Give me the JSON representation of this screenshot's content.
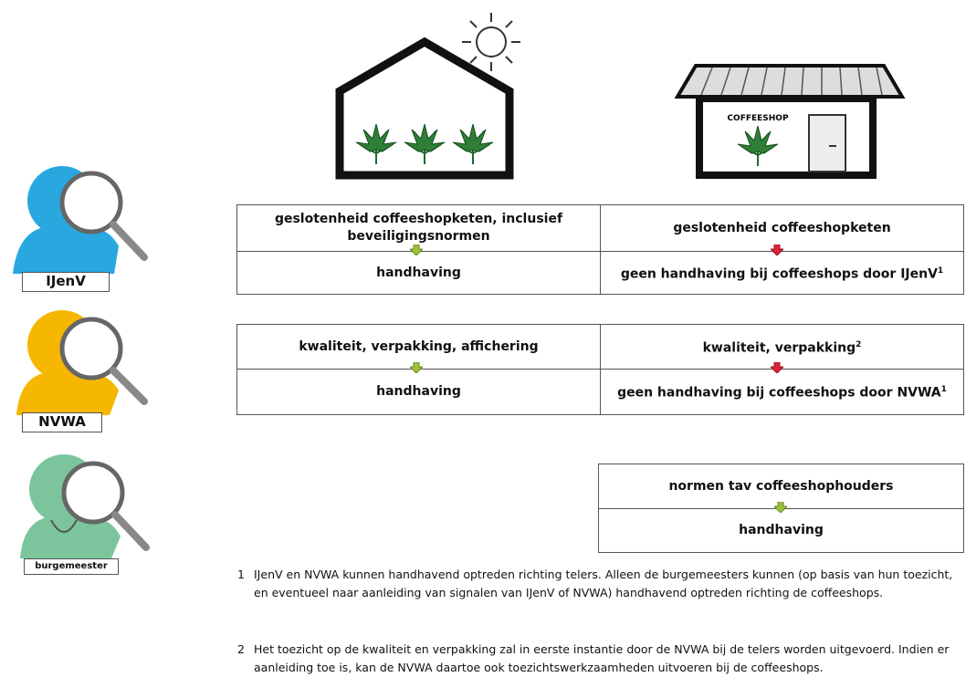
{
  "actors": [
    {
      "label": "IJenV"
    },
    {
      "label": "NVWA"
    },
    {
      "label": "burgemeester"
    }
  ],
  "coffeeshop_sign": "COFFEESHOP",
  "tables": [
    {
      "cells": [
        [
          {
            "text": "geslotenheid coffeeshopketen, inclusief beveiligingsnormen"
          },
          {
            "text": "geslotenheid coffeeshopketen"
          }
        ],
        [
          {
            "text": "handhaving"
          },
          {
            "text": "geen handhaving bij coffeeshops door IJenV",
            "note": "1"
          }
        ]
      ]
    },
    {
      "cells": [
        [
          {
            "text": "kwaliteit, verpakking, affichering"
          },
          {
            "text": "kwaliteit, verpakking",
            "note": "2"
          }
        ],
        [
          {
            "text": "handhaving"
          },
          {
            "text": "geen handhaving bij coffeeshops door NVWA",
            "note": "1"
          }
        ]
      ]
    },
    {
      "cells": [
        [
          {
            "text": "normen tav coffeeshophouders"
          }
        ],
        [
          {
            "text": "handhaving"
          }
        ]
      ]
    }
  ],
  "footnotes": [
    {
      "number": "1",
      "text": "IJenV en NVWA kunnen handhavend optreden richting telers. Alleen de burgemeesters kunnen (op basis van hun toezicht, en eventueel naar aanleiding van signalen van IJenV of NVWA) handhavend optreden richting de coffeeshops."
    },
    {
      "number": "2",
      "text": "Het toezicht op de kwaliteit en verpakking zal in eerste instantie door de NVWA bij de telers worden uitgevoerd. Indien er aanleiding toe is, kan de NVWA daartoe ook toezichtswerkzaamheden uitvoeren bij de coffeeshops."
    }
  ]
}
